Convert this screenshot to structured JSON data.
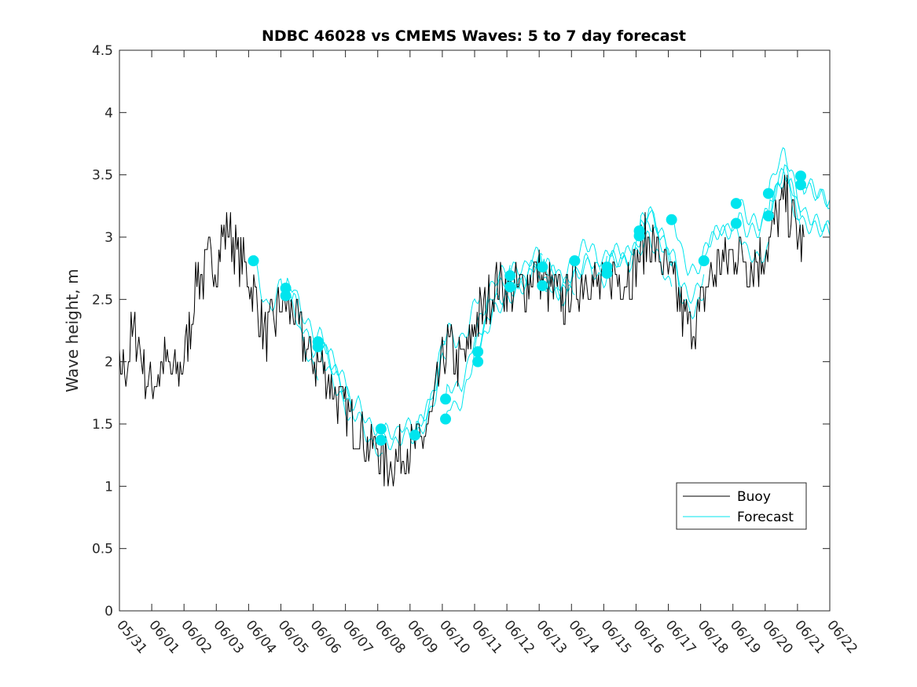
{
  "chart_data": {
    "type": "line",
    "title": "NDBC 46028 vs CMEMS Waves: 5 to 7 day forecast",
    "xlabel": "",
    "ylabel": "Wave height, m",
    "xlim": [
      "05/31",
      "06/22"
    ],
    "ylim": [
      0,
      4.5
    ],
    "x_tick_labels": [
      "05/31",
      "06/01",
      "06/02",
      "06/03",
      "06/04",
      "06/05",
      "06/06",
      "06/07",
      "06/08",
      "06/09",
      "06/10",
      "06/11",
      "06/12",
      "06/13",
      "06/14",
      "06/15",
      "06/16",
      "06/17",
      "06/18",
      "06/19",
      "06/20",
      "06/21",
      "06/22"
    ],
    "y_ticks": [
      0,
      0.5,
      1,
      1.5,
      2,
      2.5,
      3,
      3.5,
      4,
      4.5
    ],
    "y_tick_labels": [
      "0",
      "0.5",
      "1",
      "1.5",
      "2",
      "2.5",
      "3",
      "3.5",
      "4",
      "4.5"
    ],
    "grid": false,
    "legend_position": "lower-right",
    "colors": {
      "buoy": "#000000",
      "forecast": "#00e5ee"
    },
    "series": [
      {
        "name": "Buoy",
        "x_days": [
          0.0,
          0.2,
          0.4,
          0.6,
          0.8,
          1.0,
          1.2,
          1.4,
          1.6,
          1.8,
          2.0,
          2.2,
          2.4,
          2.6,
          2.8,
          3.0,
          3.2,
          3.4,
          3.6,
          3.8,
          4.0,
          4.2,
          4.4,
          4.6,
          4.8,
          5.0,
          5.2,
          5.4,
          5.6,
          5.8,
          6.0,
          6.2,
          6.4,
          6.6,
          6.8,
          7.0,
          7.2,
          7.4,
          7.6,
          7.8,
          8.0,
          8.2,
          8.4,
          8.6,
          8.8,
          9.0,
          9.2,
          9.4,
          9.6,
          9.8,
          10.0,
          10.2,
          10.4,
          10.6,
          10.8,
          11.0,
          11.2,
          11.4,
          11.6,
          11.8,
          12.0,
          12.2,
          12.4,
          12.6,
          12.8,
          13.0,
          13.2,
          13.4,
          13.6,
          13.8,
          14.0,
          14.2,
          14.4,
          14.6,
          14.8,
          15.0,
          15.2,
          15.4,
          15.6,
          15.8,
          16.0,
          16.2,
          16.4,
          16.6,
          16.8,
          17.0,
          17.2,
          17.4,
          17.6,
          17.8,
          18.0,
          18.2,
          18.4,
          18.6,
          18.8,
          19.0,
          19.2,
          19.4,
          19.6,
          19.8,
          20.0,
          20.2,
          20.4,
          20.6,
          20.8,
          21.0,
          21.2
        ],
        "values": [
          1.9,
          2.0,
          2.2,
          2.2,
          1.9,
          1.8,
          1.9,
          2.0,
          1.9,
          1.9,
          2.0,
          2.3,
          2.7,
          2.7,
          2.8,
          2.8,
          3.0,
          3.1,
          2.9,
          2.8,
          2.7,
          2.5,
          2.3,
          2.2,
          2.3,
          2.5,
          2.4,
          2.4,
          2.2,
          2.1,
          2.0,
          2.0,
          1.9,
          1.8,
          1.7,
          1.6,
          1.5,
          1.5,
          1.4,
          1.3,
          1.3,
          1.2,
          1.2,
          1.2,
          1.3,
          1.3,
          1.3,
          1.4,
          1.5,
          1.7,
          2.0,
          2.1,
          2.0,
          2.0,
          2.1,
          2.3,
          2.4,
          2.5,
          2.6,
          2.6,
          2.6,
          2.6,
          2.6,
          2.6,
          2.7,
          2.7,
          2.6,
          2.6,
          2.5,
          2.5,
          2.6,
          2.6,
          2.7,
          2.7,
          2.6,
          2.6,
          2.7,
          2.7,
          2.7,
          2.7,
          2.8,
          2.9,
          3.0,
          2.9,
          2.8,
          2.7,
          2.6,
          2.4,
          2.3,
          2.3,
          2.4,
          2.6,
          2.7,
          2.8,
          2.8,
          2.9,
          2.9,
          2.8,
          2.8,
          2.8,
          2.9,
          3.0,
          3.2,
          3.3,
          3.2,
          3.0,
          2.9
        ]
      },
      {
        "name": "Forecast",
        "markers_x_days": [
          4.15,
          5.15,
          5.15,
          6.15,
          6.15,
          8.1,
          8.1,
          9.15,
          10.1,
          10.1,
          11.1,
          11.1,
          12.1,
          12.1,
          13.1,
          13.1,
          14.1,
          15.1,
          15.1,
          16.1,
          16.1,
          17.1,
          18.1,
          19.1,
          19.1,
          20.1,
          20.1,
          21.1,
          21.1
        ],
        "markers_values": [
          2.81,
          2.59,
          2.53,
          2.16,
          2.12,
          1.46,
          1.37,
          1.41,
          1.7,
          1.54,
          2.08,
          2.0,
          2.69,
          2.6,
          2.76,
          2.61,
          2.81,
          2.76,
          2.71,
          3.05,
          3.01,
          3.14,
          2.81,
          3.27,
          3.11,
          3.35,
          3.17,
          3.49,
          3.42
        ]
      }
    ],
    "legend": [
      "Buoy",
      "Forecast"
    ]
  }
}
